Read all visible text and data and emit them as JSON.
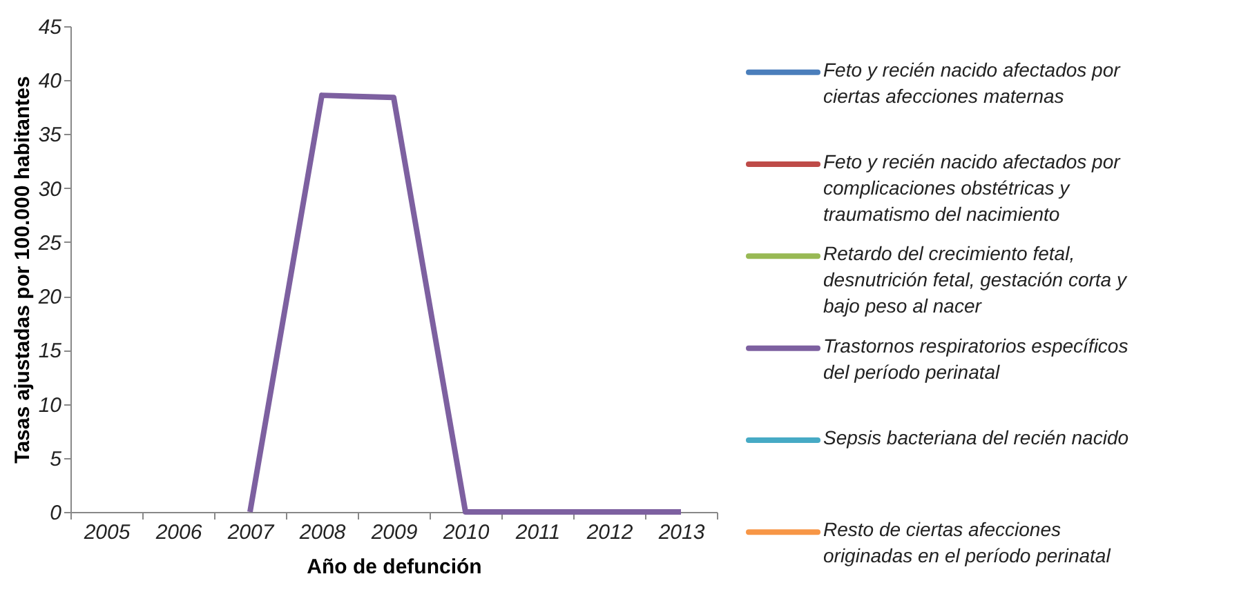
{
  "chart_data": {
    "type": "line",
    "xlabel": "Año de defunción",
    "ylabel": "Tasas ajustadas por 100.000 habitantes",
    "categories": [
      "2005",
      "2006",
      "2007",
      "2008",
      "2009",
      "2010",
      "2011",
      "2012",
      "2013"
    ],
    "ylim": [
      0,
      45
    ],
    "yticks": [
      0,
      5,
      10,
      15,
      20,
      25,
      30,
      35,
      40,
      45
    ],
    "grid": false,
    "legend": "right",
    "marker": "none",
    "line_style": "solid",
    "series": [
      {
        "name": "Feto y recién nacido afectados por ciertas afecciones maternas",
        "color": "#4a7ebb",
        "values": [
          null,
          null,
          null,
          null,
          null,
          null,
          null,
          null,
          null
        ]
      },
      {
        "name": "Feto y recién nacido afectados por complicaciones obstétricas y traumatismo del nacimiento",
        "color": "#be4b48",
        "values": [
          null,
          null,
          null,
          null,
          null,
          null,
          null,
          null,
          null
        ]
      },
      {
        "name": "Retardo del crecimiento fetal, desnutrición fetal, gestación corta y bajo peso al nacer",
        "color": "#98b954",
        "values": [
          null,
          null,
          null,
          null,
          null,
          null,
          null,
          null,
          null
        ]
      },
      {
        "name": "Trastornos respiratorios específicos del período perinatal",
        "color": "#7d60a0",
        "values": [
          null,
          null,
          0,
          38.6,
          38.4,
          0,
          0,
          0,
          0
        ]
      },
      {
        "name": "Sepsis bacteriana del recién nacido",
        "color": "#46aac5",
        "values": [
          null,
          null,
          null,
          null,
          null,
          null,
          null,
          null,
          null
        ]
      },
      {
        "name": "Resto de ciertas afecciones originadas en el período perinatal",
        "color": "#f79646",
        "values": [
          null,
          null,
          null,
          null,
          null,
          null,
          null,
          null,
          null
        ]
      }
    ]
  }
}
